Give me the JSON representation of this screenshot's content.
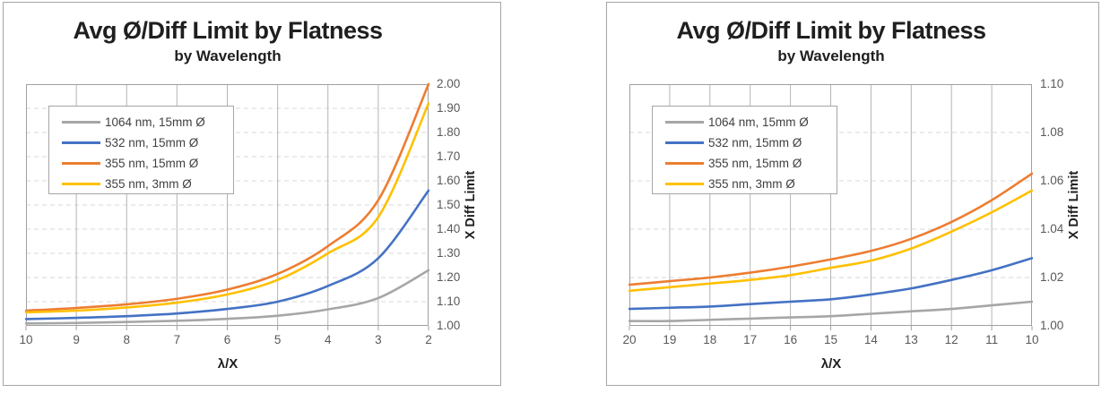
{
  "page": {
    "background": "#ffffff"
  },
  "chart_data": [
    {
      "type": "line",
      "title": "Avg Ø/Diff Limit by Flatness",
      "subtitle": "by Wavelength",
      "xlabel": "λ/X",
      "ylabel": "X Diff Limit",
      "x_axis_reversed": true,
      "xlim": [
        10,
        2
      ],
      "ylim": [
        1.0,
        2.0
      ],
      "x_ticks": [
        "10",
        "9",
        "8",
        "7",
        "6",
        "5",
        "4",
        "3",
        "2"
      ],
      "y_ticks": [
        "1.00",
        "1.10",
        "1.20",
        "1.30",
        "1.40",
        "1.50",
        "1.60",
        "1.70",
        "1.80",
        "1.90",
        "2.00"
      ],
      "grid": {
        "vertical": "solid",
        "horizontal": "dashed"
      },
      "legend_position": "upper-left",
      "x": [
        10,
        9,
        8,
        7,
        6,
        5,
        4,
        3,
        2
      ],
      "series": [
        {
          "name": "1064 nm, 15mm Ø",
          "color": "#A6A6A6",
          "values": [
            1.01,
            1.012,
            1.016,
            1.021,
            1.029,
            1.042,
            1.068,
            1.115,
            1.23
          ]
        },
        {
          "name": "532 nm, 15mm Ø",
          "color": "#4472C4",
          "values": [
            1.028,
            1.033,
            1.04,
            1.051,
            1.07,
            1.1,
            1.165,
            1.28,
            1.56
          ]
        },
        {
          "name": "355 nm, 15mm Ø",
          "color": "#ED7D31",
          "values": [
            1.063,
            1.074,
            1.089,
            1.112,
            1.15,
            1.215,
            1.33,
            1.52,
            2.0
          ]
        },
        {
          "name": "355 nm, 3mm Ø",
          "color": "#FFC000",
          "values": [
            1.056,
            1.063,
            1.076,
            1.096,
            1.13,
            1.19,
            1.3,
            1.45,
            1.92
          ]
        }
      ]
    },
    {
      "type": "line",
      "title": "Avg Ø/Diff Limit by Flatness",
      "subtitle": "by Wavelength",
      "xlabel": "λ/X",
      "ylabel": "X Diff Limit",
      "x_axis_reversed": true,
      "xlim": [
        20,
        10
      ],
      "ylim": [
        1.0,
        1.1
      ],
      "x_ticks": [
        "20",
        "19",
        "18",
        "17",
        "16",
        "15",
        "14",
        "13",
        "12",
        "11",
        "10"
      ],
      "y_ticks": [
        "1.00",
        "1.02",
        "1.04",
        "1.06",
        "1.08",
        "1.10"
      ],
      "grid": {
        "vertical": "solid",
        "horizontal": "dashed"
      },
      "legend_position": "upper-left",
      "x": [
        20,
        19,
        18,
        17,
        16,
        15,
        14,
        13,
        12,
        11,
        10
      ],
      "series": [
        {
          "name": "1064 nm, 15mm Ø",
          "color": "#A6A6A6",
          "values": [
            1.002,
            1.002,
            1.0025,
            1.003,
            1.0035,
            1.004,
            1.005,
            1.006,
            1.007,
            1.0085,
            1.01
          ]
        },
        {
          "name": "532 nm, 15mm Ø",
          "color": "#4472C4",
          "values": [
            1.007,
            1.0075,
            1.008,
            1.009,
            1.01,
            1.011,
            1.013,
            1.0155,
            1.019,
            1.023,
            1.028
          ]
        },
        {
          "name": "355 nm, 15mm Ø",
          "color": "#ED7D31",
          "values": [
            1.017,
            1.0185,
            1.02,
            1.022,
            1.0245,
            1.0275,
            1.031,
            1.036,
            1.043,
            1.052,
            1.063
          ]
        },
        {
          "name": "355 nm, 3mm Ø",
          "color": "#FFC000",
          "values": [
            1.0145,
            1.016,
            1.0175,
            1.019,
            1.021,
            1.024,
            1.027,
            1.032,
            1.039,
            1.047,
            1.056
          ]
        }
      ]
    }
  ],
  "style": {
    "plot_border_color": "#a0a0a0",
    "vertical_grid_color": "#b4b4b4",
    "horizontal_grid_color": "#d8d8d8",
    "tick_mark_color": "#a0a0a0",
    "line_width": 2.6
  }
}
